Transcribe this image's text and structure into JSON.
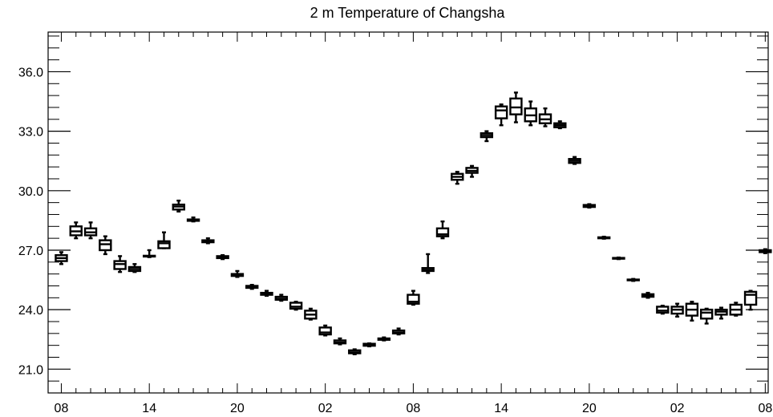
{
  "chart_data": {
    "type": "box",
    "title": "2 m Temperature of Changsha",
    "xlabel": "",
    "ylabel": "",
    "ylim": [
      19.8,
      38.0
    ],
    "y_ticks": [
      21.0,
      24.0,
      27.0,
      30.0,
      33.0,
      36.0
    ],
    "y_tick_labels": [
      "21.0",
      "24.0",
      "27.0",
      "30.0",
      "33.0",
      "36.0"
    ],
    "y_minor_step": 0.6,
    "x_range": [
      -0.9,
      48.2
    ],
    "x_ticks": [
      0,
      6,
      12,
      18,
      24,
      30,
      36,
      42,
      48
    ],
    "x_tick_labels": [
      "08",
      "14",
      "20",
      "02",
      "08",
      "14",
      "20",
      "02",
      "08"
    ],
    "x_minor_step": 1,
    "grid": false,
    "boxes": [
      {
        "x": 0,
        "min": 26.3,
        "q1": 26.45,
        "median": 26.6,
        "q3": 26.75,
        "max": 26.9
      },
      {
        "x": 1,
        "min": 27.6,
        "q1": 27.75,
        "median": 27.95,
        "q3": 28.2,
        "max": 28.4
      },
      {
        "x": 2,
        "min": 27.6,
        "q1": 27.75,
        "median": 27.9,
        "q3": 28.1,
        "max": 28.4
      },
      {
        "x": 3,
        "min": 26.8,
        "q1": 27.0,
        "median": 27.3,
        "q3": 27.5,
        "max": 27.7
      },
      {
        "x": 4,
        "min": 25.9,
        "q1": 26.05,
        "median": 26.3,
        "q3": 26.45,
        "max": 26.7
      },
      {
        "x": 5,
        "min": 25.9,
        "q1": 25.95,
        "median": 26.05,
        "q3": 26.15,
        "max": 26.3
      },
      {
        "x": 6,
        "min": 26.65,
        "q1": 26.68,
        "median": 26.7,
        "q3": 26.72,
        "max": 27.0
      },
      {
        "x": 7,
        "min": 27.1,
        "q1": 27.1,
        "median": 27.35,
        "q3": 27.45,
        "max": 27.9
      },
      {
        "x": 8,
        "min": 28.95,
        "q1": 29.05,
        "median": 29.2,
        "q3": 29.3,
        "max": 29.5
      },
      {
        "x": 9,
        "min": 28.45,
        "q1": 28.48,
        "median": 28.5,
        "q3": 28.55,
        "max": 28.65
      },
      {
        "x": 10,
        "min": 27.35,
        "q1": 27.4,
        "median": 27.45,
        "q3": 27.5,
        "max": 27.6
      },
      {
        "x": 11,
        "min": 26.55,
        "q1": 26.6,
        "median": 26.65,
        "q3": 26.7,
        "max": 26.75
      },
      {
        "x": 12,
        "min": 25.65,
        "q1": 25.7,
        "median": 25.75,
        "q3": 25.8,
        "max": 25.95
      },
      {
        "x": 13,
        "min": 25.05,
        "q1": 25.1,
        "median": 25.15,
        "q3": 25.2,
        "max": 25.25
      },
      {
        "x": 14,
        "min": 24.7,
        "q1": 24.75,
        "median": 24.8,
        "q3": 24.85,
        "max": 24.95
      },
      {
        "x": 15,
        "min": 24.45,
        "q1": 24.5,
        "median": 24.55,
        "q3": 24.65,
        "max": 24.75
      },
      {
        "x": 16,
        "min": 24.0,
        "q1": 24.05,
        "median": 24.15,
        "q3": 24.35,
        "max": 24.4
      },
      {
        "x": 17,
        "min": 23.5,
        "q1": 23.55,
        "median": 23.75,
        "q3": 23.95,
        "max": 24.05
      },
      {
        "x": 18,
        "min": 22.7,
        "q1": 22.75,
        "median": 22.85,
        "q3": 23.1,
        "max": 23.2
      },
      {
        "x": 19,
        "min": 22.25,
        "q1": 22.3,
        "median": 22.35,
        "q3": 22.45,
        "max": 22.55
      },
      {
        "x": 20,
        "min": 21.75,
        "q1": 21.8,
        "median": 21.85,
        "q3": 21.95,
        "max": 22.0
      },
      {
        "x": 21,
        "min": 22.15,
        "q1": 22.18,
        "median": 22.22,
        "q3": 22.28,
        "max": 22.3
      },
      {
        "x": 22,
        "min": 22.45,
        "q1": 22.48,
        "median": 22.5,
        "q3": 22.55,
        "max": 22.6
      },
      {
        "x": 23,
        "min": 22.75,
        "q1": 22.8,
        "median": 22.85,
        "q3": 22.95,
        "max": 23.05
      },
      {
        "x": 24,
        "min": 24.25,
        "q1": 24.3,
        "median": 24.4,
        "q3": 24.75,
        "max": 24.95
      },
      {
        "x": 25,
        "min": 25.85,
        "q1": 25.95,
        "median": 26.0,
        "q3": 26.1,
        "max": 26.8
      },
      {
        "x": 26,
        "min": 27.6,
        "q1": 27.7,
        "median": 27.8,
        "q3": 28.1,
        "max": 28.45
      },
      {
        "x": 27,
        "min": 30.35,
        "q1": 30.55,
        "median": 30.7,
        "q3": 30.85,
        "max": 30.95
      },
      {
        "x": 28,
        "min": 30.7,
        "q1": 30.9,
        "median": 31.0,
        "q3": 31.15,
        "max": 31.25
      },
      {
        "x": 29,
        "min": 32.5,
        "q1": 32.7,
        "median": 32.8,
        "q3": 32.9,
        "max": 33.0
      },
      {
        "x": 30,
        "min": 33.3,
        "q1": 33.65,
        "median": 34.05,
        "q3": 34.25,
        "max": 34.35
      },
      {
        "x": 31,
        "min": 33.45,
        "q1": 33.85,
        "median": 34.2,
        "q3": 34.65,
        "max": 34.95
      },
      {
        "x": 32,
        "min": 33.3,
        "q1": 33.5,
        "median": 33.8,
        "q3": 34.15,
        "max": 34.5
      },
      {
        "x": 33,
        "min": 33.25,
        "q1": 33.4,
        "median": 33.6,
        "q3": 33.85,
        "max": 34.15
      },
      {
        "x": 34,
        "min": 33.15,
        "q1": 33.2,
        "median": 33.3,
        "q3": 33.4,
        "max": 33.5
      },
      {
        "x": 35,
        "min": 31.35,
        "q1": 31.4,
        "median": 31.5,
        "q3": 31.6,
        "max": 31.7
      },
      {
        "x": 36,
        "min": 29.15,
        "q1": 29.18,
        "median": 29.22,
        "q3": 29.28,
        "max": 29.32
      },
      {
        "x": 37,
        "min": 27.58,
        "q1": 27.6,
        "median": 27.62,
        "q3": 27.65,
        "max": 27.68
      },
      {
        "x": 38,
        "min": 26.55,
        "q1": 26.57,
        "median": 26.59,
        "q3": 26.61,
        "max": 26.63
      },
      {
        "x": 39,
        "min": 25.45,
        "q1": 25.48,
        "median": 25.5,
        "q3": 25.52,
        "max": 25.55
      },
      {
        "x": 40,
        "min": 24.6,
        "q1": 24.65,
        "median": 24.7,
        "q3": 24.78,
        "max": 24.85
      },
      {
        "x": 41,
        "min": 23.8,
        "q1": 23.85,
        "median": 23.95,
        "q3": 24.15,
        "max": 24.2
      },
      {
        "x": 42,
        "min": 23.65,
        "q1": 23.8,
        "median": 24.0,
        "q3": 24.15,
        "max": 24.3
      },
      {
        "x": 43,
        "min": 23.45,
        "q1": 23.7,
        "median": 24.0,
        "q3": 24.3,
        "max": 24.4
      },
      {
        "x": 44,
        "min": 23.3,
        "q1": 23.55,
        "median": 23.85,
        "q3": 24.0,
        "max": 24.05
      },
      {
        "x": 45,
        "min": 23.55,
        "q1": 23.75,
        "median": 23.9,
        "q3": 24.0,
        "max": 24.1
      },
      {
        "x": 46,
        "min": 23.7,
        "q1": 23.75,
        "median": 24.0,
        "q3": 24.25,
        "max": 24.35
      },
      {
        "x": 47,
        "min": 24.0,
        "q1": 24.25,
        "median": 24.75,
        "q3": 24.9,
        "max": 24.95
      },
      {
        "x": 48,
        "min": 26.85,
        "q1": 26.9,
        "median": 26.95,
        "q3": 27.0,
        "max": 27.05
      }
    ]
  }
}
